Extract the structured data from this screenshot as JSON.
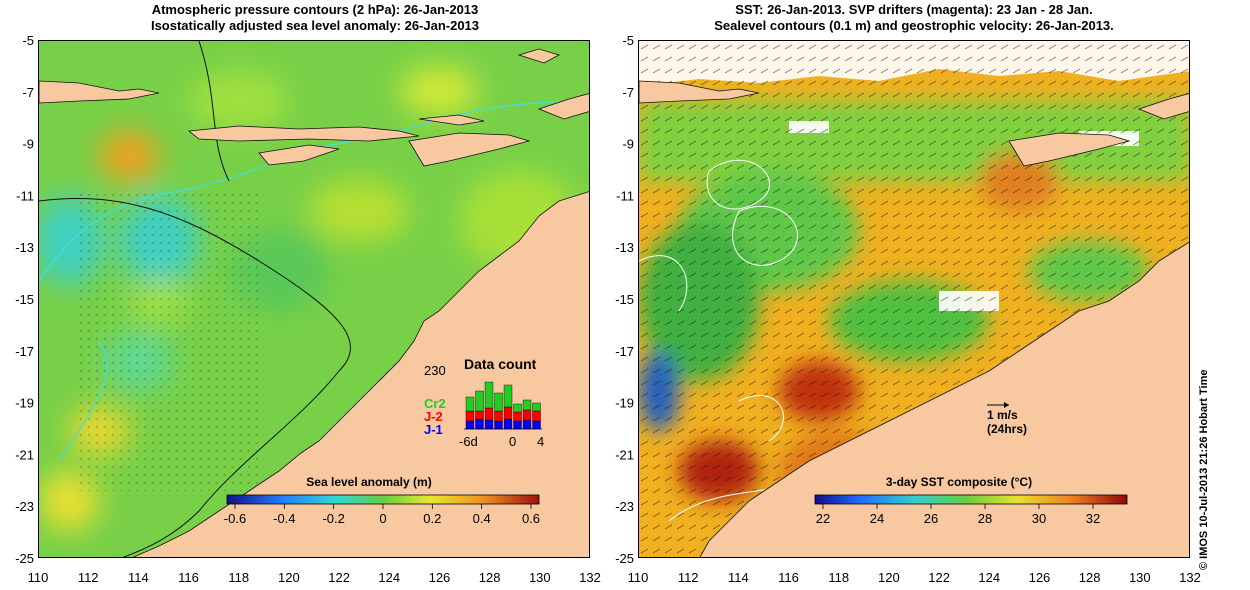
{
  "left_panel": {
    "title_line1": "Atmospheric pressure contours (2 hPa): 26-Jan-2013",
    "title_line2": "Isostatically adjusted sea level anomaly: 26-Jan-2013",
    "colorbar_label": "Sea level anomaly (m)",
    "colorbar_ticks": [
      "-0.6",
      "-0.4",
      "-0.2",
      "0",
      "0.2",
      "0.4",
      "0.6"
    ],
    "inset": {
      "title": "Data count",
      "ymax_label": "230",
      "x_ticks": [
        "-6d",
        "0",
        "4"
      ],
      "series": [
        {
          "name": "Cr2",
          "color": "#22cc22"
        },
        {
          "name": "J-2",
          "color": "#ff0000"
        },
        {
          "name": "J-1",
          "color": "#0000ff"
        }
      ]
    }
  },
  "right_panel": {
    "title_line1": "SST: 26-Jan-2013. SVP drifters (magenta): 23 Jan - 28 Jan.",
    "title_line2": "Sealevel contours (0.1 m) and geostrophic velocity: 26-Jan-2013.",
    "colorbar_label": "3-day SST composite (°C)",
    "colorbar_ticks": [
      "22",
      "24",
      "26",
      "28",
      "30",
      "32"
    ],
    "scale_label": "1 m/s",
    "scale_sublabel": "(24hrs)"
  },
  "axes": {
    "lon_ticks": [
      "110",
      "112",
      "114",
      "116",
      "118",
      "120",
      "122",
      "124",
      "126",
      "128",
      "130",
      "132"
    ],
    "lat_ticks": [
      "-5",
      "-7",
      "-9",
      "-11",
      "-13",
      "-15",
      "-17",
      "-19",
      "-21",
      "-23",
      "-25"
    ]
  },
  "credit": "© IMOS 10-Jul-2013 21:26 Hobart Time",
  "colors": {
    "land": "#f8c8a0",
    "sea_green": "#7cd44a",
    "contour_cyan": "#40e0e0"
  }
}
